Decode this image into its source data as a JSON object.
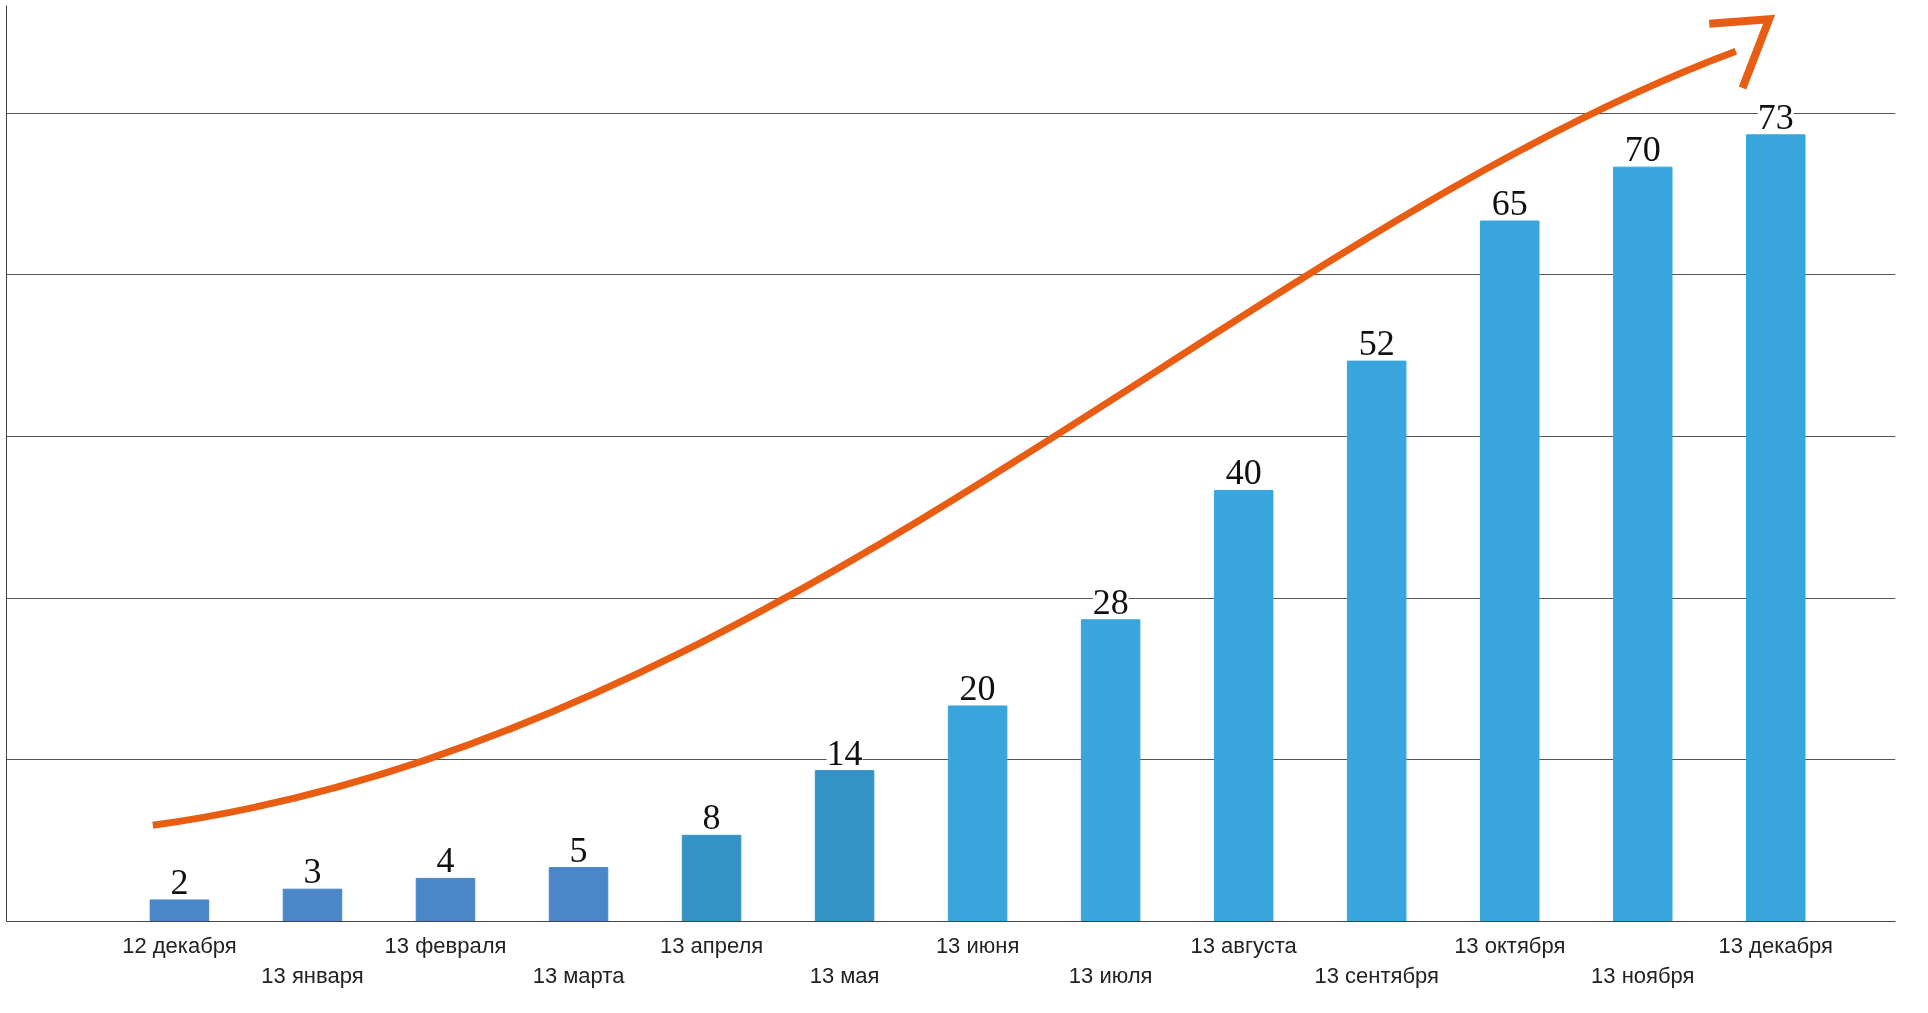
{
  "chart_data": {
    "type": "bar",
    "categories": [
      "12 декабря",
      "13 января",
      "13 февраля",
      "13 марта",
      "13 апреля",
      "13 мая",
      "13 июня",
      "13 июля",
      "13 августа",
      "13 сентября",
      "13 октября",
      "13 ноября",
      "13 декабря"
    ],
    "values": [
      2,
      3,
      4,
      5,
      8,
      14,
      20,
      28,
      40,
      52,
      65,
      70,
      73
    ],
    "colors": [
      "#4a86c8",
      "#4a86c8",
      "#4a86c8",
      "#4a86c8",
      "#3393c6",
      "#3393c6",
      "#38a5dc",
      "#38a5dc",
      "#38a5dc",
      "#38a5dc",
      "#38a5dc",
      "#38a5dc",
      "#38a5dc"
    ],
    "ylim": [
      0,
      85
    ],
    "yticks": [
      {
        "value": 15,
        "label": null
      },
      {
        "value": 30,
        "label": null
      },
      {
        "value": 45,
        "label": null
      },
      {
        "value": 60,
        "label": null
      },
      {
        "value": 75,
        "label": null
      }
    ],
    "grid": "y",
    "data_labels": true,
    "tick_labels": "x"
  }
}
